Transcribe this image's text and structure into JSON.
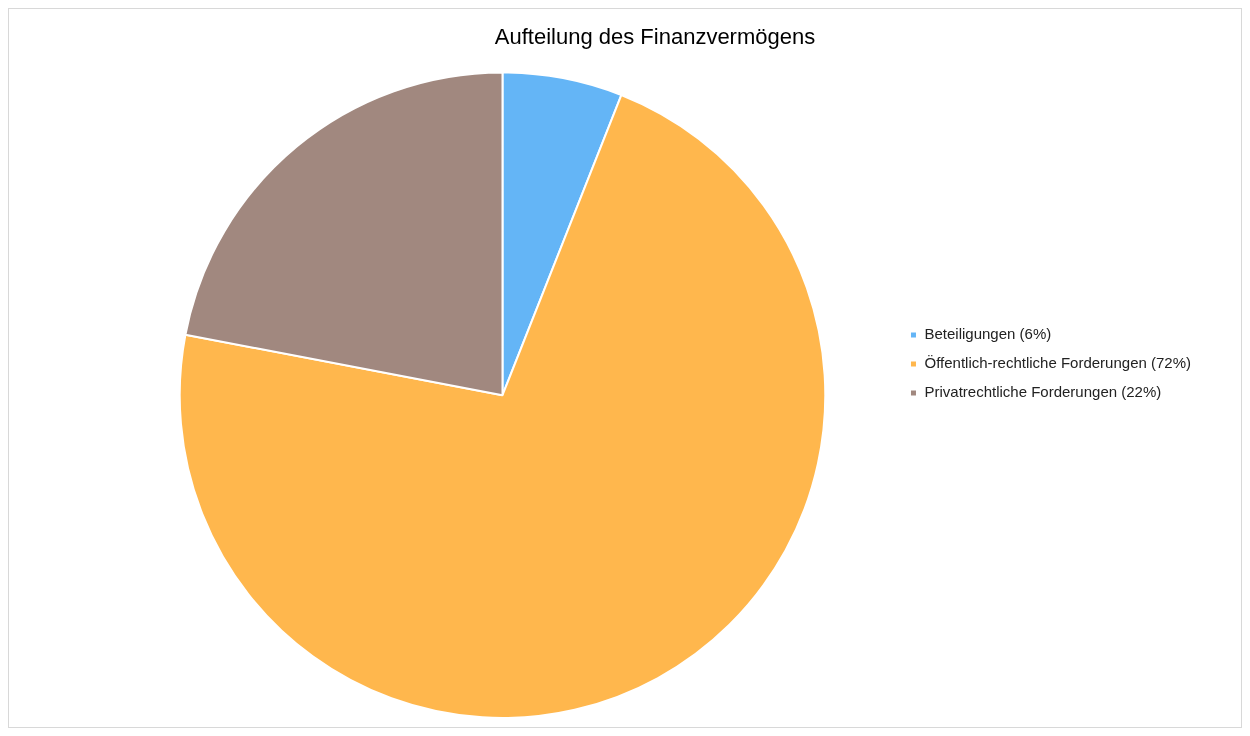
{
  "chart_data": {
    "type": "pie",
    "title": "Aufteilung des Finanzvermögens",
    "categories": [
      "Beteiligungen (6%)",
      "Öffentlich-rechtliche Forderungen (72%)",
      "Privatrechtliche Forderungen (22%)"
    ],
    "values": [
      6,
      72,
      22
    ],
    "colors": [
      "#64b5f6",
      "#ffb74d",
      "#a1887f"
    ],
    "legend": "right"
  }
}
